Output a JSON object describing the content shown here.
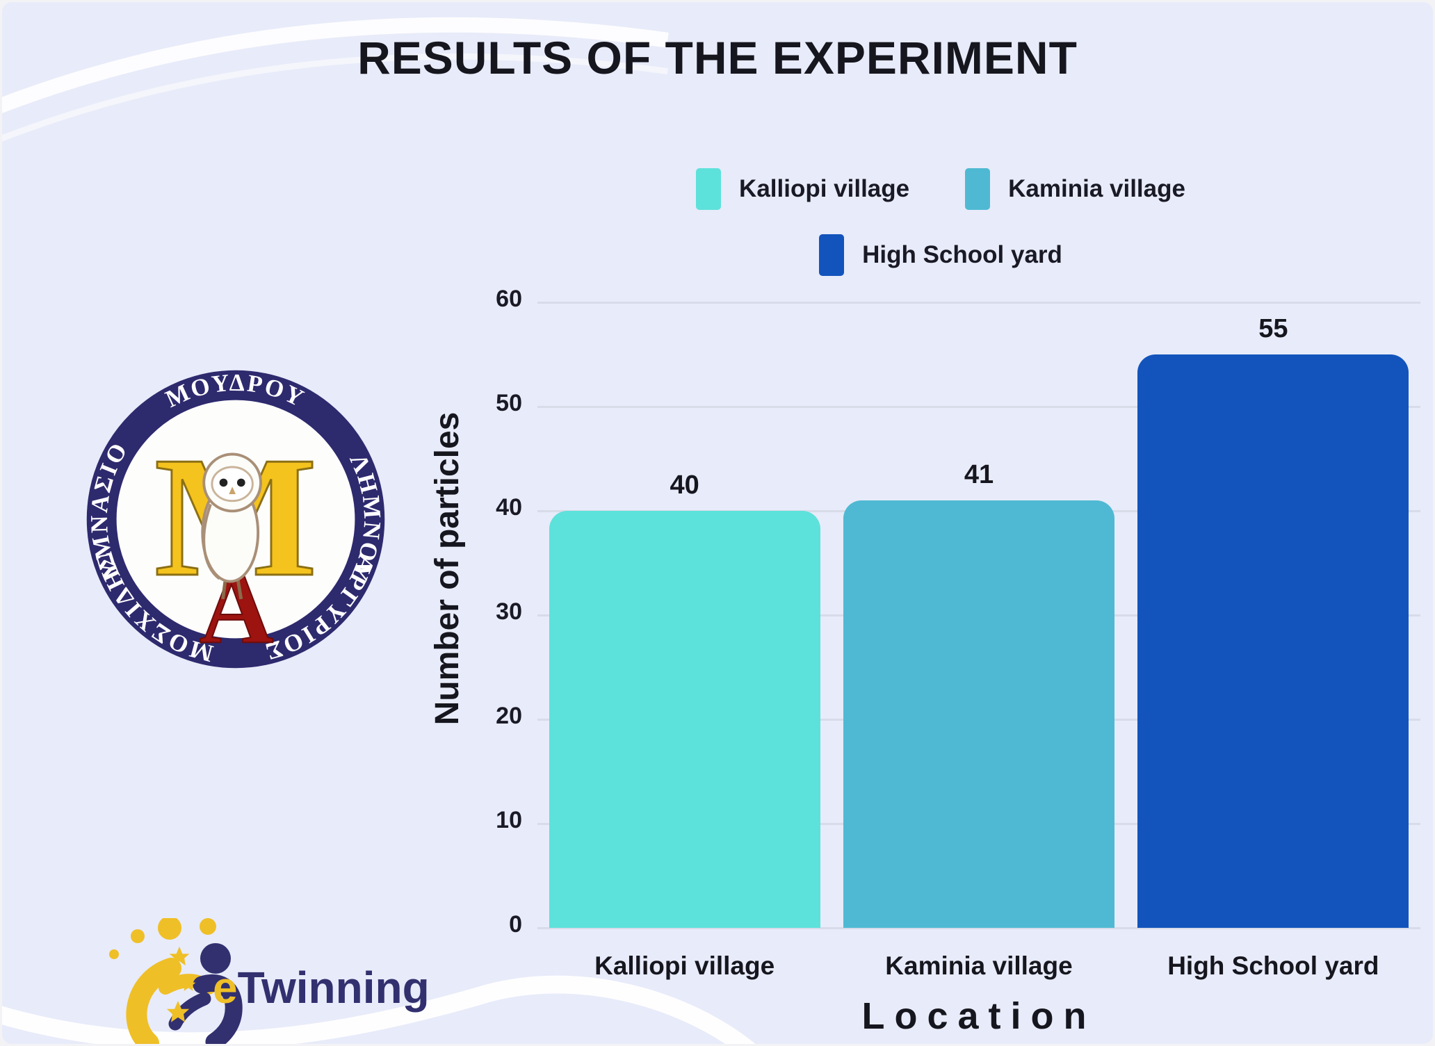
{
  "page": {
    "title": "RESULTS OF THE EXPERIMENT"
  },
  "chart_data": {
    "type": "bar",
    "title": "RESULTS OF THE EXPERIMENT",
    "categories": [
      "Kalliopi village",
      "Kaminia village",
      "High School yard"
    ],
    "values": [
      40,
      41,
      55
    ],
    "data_labels": [
      "40",
      "41",
      "55"
    ],
    "bar_colors": [
      "#5DE1DB",
      "#4FB9D3",
      "#1254BC"
    ],
    "xlabel": "Location",
    "ylabel": "Number of particles",
    "ylim": [
      0,
      60
    ],
    "yticks": [
      0,
      10,
      20,
      30,
      40,
      50,
      60
    ],
    "grid": true,
    "legend_position": "top-center",
    "legend": [
      {
        "label": "Kalliopi village",
        "color": "#5DE1DB"
      },
      {
        "label": "Kaminia village",
        "color": "#4FB9D3"
      },
      {
        "label": "High School yard",
        "color": "#1254BC"
      }
    ]
  },
  "school_logo": {
    "ring_top_left": "ΓΥΜΝΑΣΙΟ",
    "ring_top": "ΜΟΥΔΡΟΥ",
    "ring_top_right": "ΛΗΜΝΟΥ",
    "ring_bottom_left": "ΜΟΣΧΙΔΗΣ",
    "ring_bottom_right": "ΑΡΓΥΡΙΟΣ",
    "monogram_m": "M",
    "monogram_a": "A"
  },
  "etwinning": {
    "prefix": "e",
    "rest": "Twinning"
  },
  "colors": {
    "background": "#E8EBF9",
    "title_text": "#16161E",
    "axis_text": "#1A1A26",
    "grid": "#D8DBE8",
    "ring_navy": "#2E2A6E",
    "gold": "#F5C31D",
    "dark_red": "#9C1310",
    "etwinning_navy": "#32306F",
    "etwinning_yellow": "#EFBF27"
  }
}
